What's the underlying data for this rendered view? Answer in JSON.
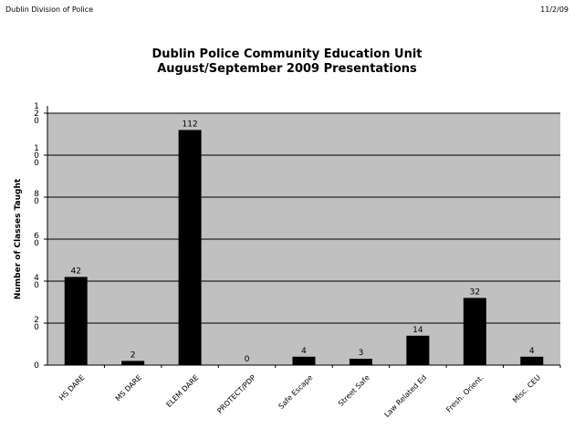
{
  "header": {
    "left": "Dublin Division of Police",
    "right": "11/2/09"
  },
  "chart_data": {
    "type": "bar",
    "title_line1": "Dublin Police Community Education Unit",
    "title_line2": "August/September 2009 Presentations",
    "ylabel": "Number of Classes Taught",
    "xlabel": "",
    "ylim": [
      0,
      120
    ],
    "yticks": [
      {
        "value": 0,
        "label": "0"
      },
      {
        "value": 20,
        "label": "2 0"
      },
      {
        "value": 40,
        "label": "4 0"
      },
      {
        "value": 60,
        "label": "6 0"
      },
      {
        "value": 80,
        "label": "8 0"
      },
      {
        "value": 100,
        "label": "1 0 0"
      },
      {
        "value": 120,
        "label": "1 2 0"
      }
    ],
    "categories": [
      "HS DARE",
      "MS DARE",
      "ELEM DARE",
      "PROTECT/PDP",
      "Safe Escape",
      "Street Safe",
      "Law Related Ed",
      "Fresh. Orient.",
      "Misc. CEU"
    ],
    "values": [
      42,
      2,
      112,
      0,
      4,
      3,
      14,
      32,
      4
    ],
    "plot_background": "#c0c0c0",
    "bar_color": "#000000",
    "gridlines": true,
    "legend": "none"
  }
}
